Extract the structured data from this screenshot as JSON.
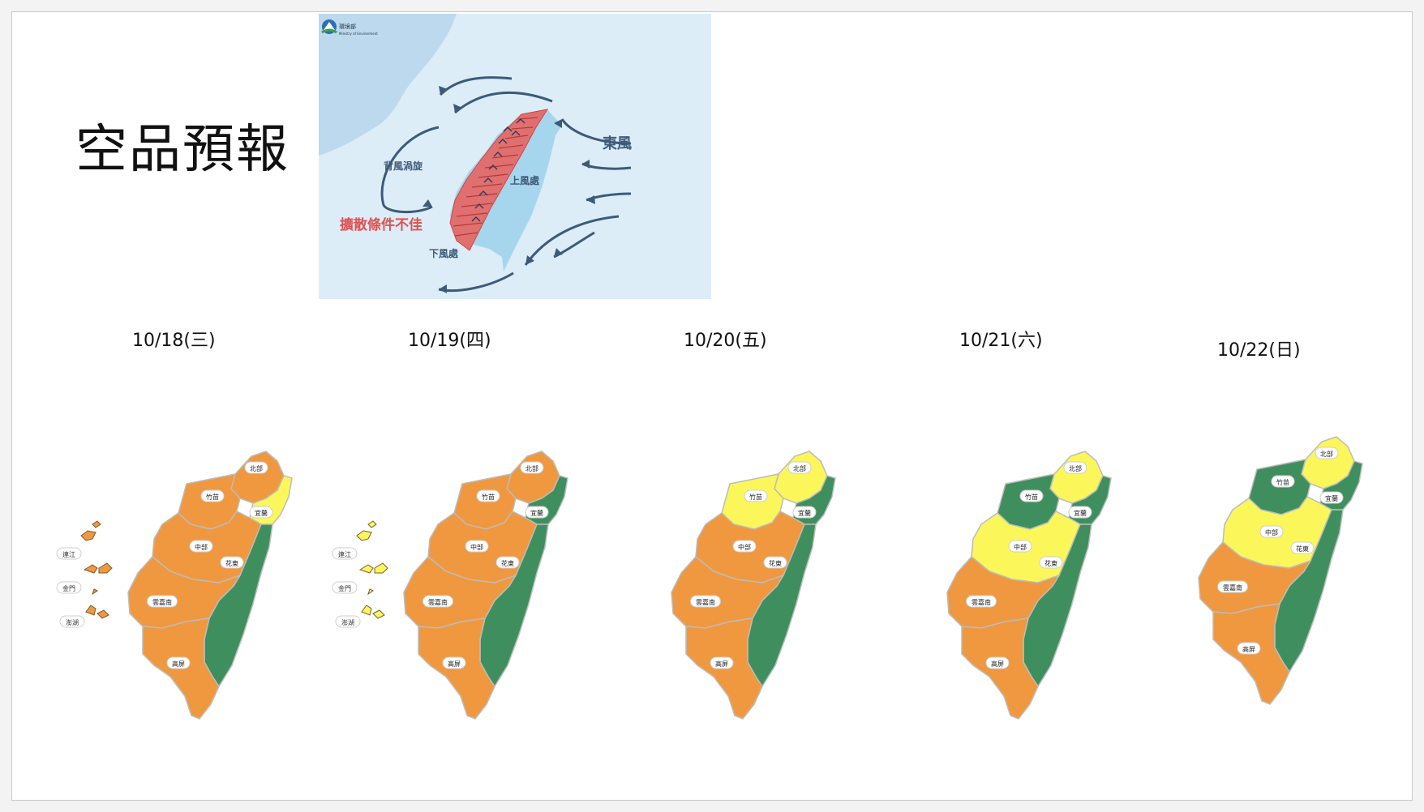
{
  "title": "空品預報",
  "diagram": {
    "east_wind": "東風",
    "lee_vortex": "背風渦旋",
    "windward": "上風處",
    "poor_dispersion": "擴散條件不佳",
    "leeward": "下風處",
    "logo_text": "環境部"
  },
  "days": [
    {
      "date": "10/18(三)"
    },
    {
      "date": "10/19(四)"
    },
    {
      "date": "10/20(五)"
    },
    {
      "date": "10/21(六)"
    },
    {
      "date": "10/22(日)"
    }
  ],
  "regions": {
    "north": "北部",
    "zhumiao": "竹苗",
    "yilan": "宜蘭",
    "central": "中部",
    "hualien_taitung": "花東",
    "yunjianan": "雲嘉南",
    "kaoping": "高屏",
    "matsu": "連江",
    "kinmen": "金門",
    "penghu": "澎湖"
  },
  "colors": {
    "green": "#3f8f5e",
    "yellow": "#fbf75a",
    "orange": "#f0983f",
    "sea": "#dcedf8",
    "china": "#bcd9ee",
    "taiwan": "#a6d6ee",
    "arrow": "#3d5a78",
    "poor": "#e05151"
  },
  "forecast": [
    {
      "north": "orange",
      "zhumiao": "orange",
      "yilan": "yellow",
      "central": "orange",
      "hualien_taitung": "green",
      "yunjianan": "orange",
      "kaoping": "orange",
      "islands": "orange"
    },
    {
      "north": "orange",
      "zhumiao": "orange",
      "yilan": "green",
      "central": "orange",
      "hualien_taitung": "green",
      "yunjianan": "orange",
      "kaoping": "orange",
      "islands": "yellow"
    },
    {
      "north": "yellow",
      "zhumiao": "yellow",
      "yilan": "green",
      "central": "orange",
      "hualien_taitung": "green",
      "yunjianan": "orange",
      "kaoping": "orange"
    },
    {
      "north": "yellow",
      "zhumiao": "green",
      "yilan": "green",
      "central": "yellow",
      "hualien_taitung": "green",
      "yunjianan": "orange",
      "kaoping": "orange"
    },
    {
      "north": "yellow",
      "zhumiao": "green",
      "yilan": "green",
      "central": "yellow",
      "hualien_taitung": "green",
      "yunjianan": "orange",
      "kaoping": "orange"
    }
  ]
}
